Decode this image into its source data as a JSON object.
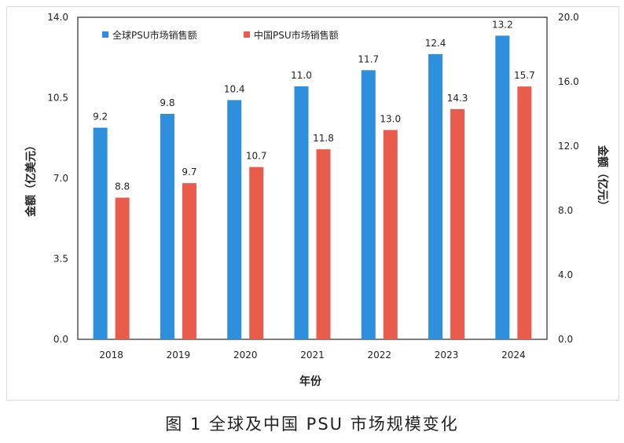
{
  "figure_caption": "图 1 全球及中国 PSU 市场规模变化",
  "chart_data": {
    "type": "bar",
    "categories": [
      "2018",
      "2019",
      "2020",
      "2021",
      "2022",
      "2023",
      "2024"
    ],
    "series": [
      {
        "name": "全球PSU市场销售额",
        "axis": "left",
        "color": "#2e8fdc",
        "values": [
          9.2,
          9.8,
          10.4,
          11.0,
          11.7,
          12.4,
          13.2
        ],
        "labels": [
          "9.2",
          "9.8",
          "10.4",
          "11.0",
          "11.7",
          "12.4",
          "13.2"
        ]
      },
      {
        "name": "中国PSU市场销售额",
        "axis": "right",
        "color": "#e95c4c",
        "values": [
          8.8,
          9.7,
          10.7,
          11.8,
          13.0,
          14.3,
          15.7
        ],
        "labels": [
          "8.8",
          "9.7",
          "10.7",
          "11.8",
          "13.0",
          "14.3",
          "15.7"
        ]
      }
    ],
    "xlabel": "年份",
    "ylabel_left": "金额（亿美元）",
    "ylabel_right": "金额（亿元）",
    "ylim_left": [
      0,
      14
    ],
    "ylim_right": [
      0,
      20
    ],
    "yticks_left": [
      "0.0",
      "3.5",
      "7.0",
      "10.5",
      "14.0"
    ],
    "yticks_right": [
      "0.0",
      "4.0",
      "8.0",
      "12.0",
      "16.0",
      "20.0"
    ],
    "legend_position": "top-left"
  }
}
